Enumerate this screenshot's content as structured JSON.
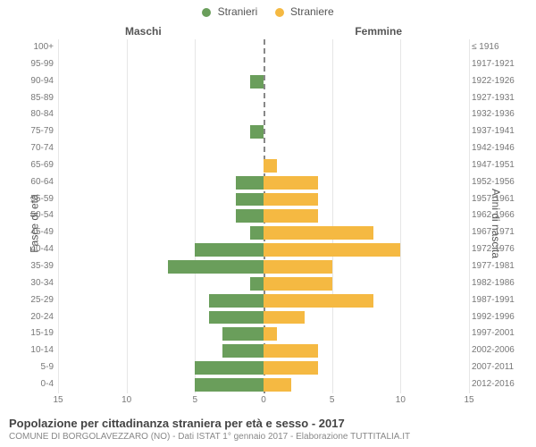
{
  "legend": {
    "male": {
      "label": "Stranieri",
      "color": "#6a9e5b"
    },
    "female": {
      "label": "Straniere",
      "color": "#f5b942"
    }
  },
  "side_titles": {
    "male": "Maschi",
    "female": "Femmine"
  },
  "axis_labels": {
    "left": "Fasce di età",
    "right": "Anni di nascita"
  },
  "pyramid": {
    "type": "population-pyramid",
    "xlim": 15,
    "xticks": [
      15,
      10,
      5,
      0,
      5,
      10,
      15
    ],
    "centerline_color": "#888888",
    "grid_color": "#e6e6e6",
    "rows": [
      {
        "age": "100+",
        "years": "≤ 1916",
        "m": 0,
        "f": 0
      },
      {
        "age": "95-99",
        "years": "1917-1921",
        "m": 0,
        "f": 0
      },
      {
        "age": "90-94",
        "years": "1922-1926",
        "m": 1,
        "f": 0
      },
      {
        "age": "85-89",
        "years": "1927-1931",
        "m": 0,
        "f": 0
      },
      {
        "age": "80-84",
        "years": "1932-1936",
        "m": 0,
        "f": 0
      },
      {
        "age": "75-79",
        "years": "1937-1941",
        "m": 1,
        "f": 0
      },
      {
        "age": "70-74",
        "years": "1942-1946",
        "m": 0,
        "f": 0
      },
      {
        "age": "65-69",
        "years": "1947-1951",
        "m": 0,
        "f": 1
      },
      {
        "age": "60-64",
        "years": "1952-1956",
        "m": 2,
        "f": 4
      },
      {
        "age": "55-59",
        "years": "1957-1961",
        "m": 2,
        "f": 4
      },
      {
        "age": "50-54",
        "years": "1962-1966",
        "m": 2,
        "f": 4
      },
      {
        "age": "45-49",
        "years": "1967-1971",
        "m": 1,
        "f": 8
      },
      {
        "age": "40-44",
        "years": "1972-1976",
        "m": 5,
        "f": 10
      },
      {
        "age": "35-39",
        "years": "1977-1981",
        "m": 7,
        "f": 5
      },
      {
        "age": "30-34",
        "years": "1982-1986",
        "m": 1,
        "f": 5
      },
      {
        "age": "25-29",
        "years": "1987-1991",
        "m": 4,
        "f": 8
      },
      {
        "age": "20-24",
        "years": "1992-1996",
        "m": 4,
        "f": 3
      },
      {
        "age": "15-19",
        "years": "1997-2001",
        "m": 3,
        "f": 1
      },
      {
        "age": "10-14",
        "years": "2002-2006",
        "m": 3,
        "f": 4
      },
      {
        "age": "5-9",
        "years": "2007-2011",
        "m": 5,
        "f": 4
      },
      {
        "age": "0-4",
        "years": "2012-2016",
        "m": 5,
        "f": 2
      }
    ]
  },
  "footer": {
    "title": "Popolazione per cittadinanza straniera per età e sesso - 2017",
    "subtitle": "COMUNE DI BORGOLAVEZZARO (NO) - Dati ISTAT 1° gennaio 2017 - Elaborazione TUTTITALIA.IT"
  }
}
